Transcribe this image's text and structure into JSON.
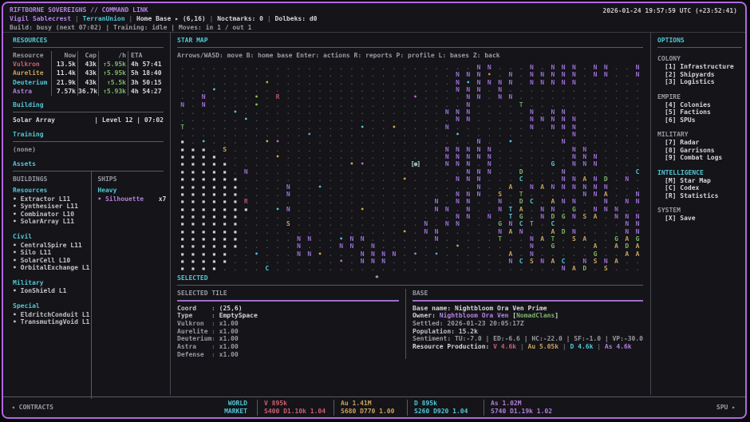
{
  "window": {
    "datetime": "2026-01-24 19:57:59 UTC  (+23:52:41)"
  },
  "header": {
    "title": "RIFTBORNE SOVEREIGNS // COMMAND LINK",
    "player": "Vigil Sablecrest",
    "faction": "TerranUnion",
    "home": "Home Base ▸ (6,16)",
    "noctmarks": "Noctmarks: 0",
    "dolbeks": "Dolbeks: d0",
    "sep": "|",
    "status_line": "Build: busy (next 07:02) | Training: idle | Moves: in 1 / out 1"
  },
  "resources": {
    "title": "RESOURCES",
    "columns": [
      "Resource",
      "Now",
      "Cap",
      "/h",
      "ETA"
    ],
    "rows": [
      {
        "name": "Vulkron",
        "now": "13.5k",
        "cap": "43k",
        "rate": "↑5.95k",
        "eta": "4h 57:41",
        "color": "#c9606e"
      },
      {
        "name": "Aurelite",
        "now": "11.4k",
        "cap": "43k",
        "rate": "↑5.95k",
        "eta": "5h 18:40",
        "color": "#c9a35c"
      },
      {
        "name": "Deuterium",
        "now": "21.9k",
        "cap": "43k",
        "rate": "↑5.5k",
        "eta": "3h 50:15",
        "color": "#52c7d4"
      },
      {
        "name": "Astra",
        "now": "7.57k",
        "cap": "36.7k",
        "rate": "↑5.93k",
        "eta": "4h 54:27",
        "color": "#b37fd9"
      }
    ]
  },
  "building": {
    "title": "Building",
    "name": "Solar Array",
    "detail": "| Level 12 | 07:02"
  },
  "training": {
    "title": "Training",
    "value": "(none)"
  },
  "assets": {
    "title": "Assets",
    "buildings_title": "BUILDINGS",
    "ships_title": "SHIPS",
    "building_groups": [
      {
        "name": "Resources",
        "items": [
          "Extractor L11",
          "Synthesiser L11",
          "Combinator L10",
          "SolarArray L11"
        ]
      },
      {
        "name": "Civil",
        "items": [
          "CentralSpire L11",
          "Silo L11",
          "SolarCell L10",
          "OrbitalExchange L1"
        ]
      },
      {
        "name": "Military",
        "items": [
          "IonShield L1"
        ]
      },
      {
        "name": "Special",
        "items": [
          "EldritchConduit L1",
          "TransmutingVoid L1"
        ]
      }
    ],
    "ship_groups": [
      {
        "name": "Heavy",
        "items": [
          {
            "name": "Silhouette",
            "count": "x7",
            "color": "#b37fd9"
          }
        ]
      }
    ]
  },
  "starmap": {
    "title": "STAR MAP",
    "help": "Arrows/WASD: move  B: home base  Enter: actions  R: reports  P: profile  L: bases  Z: back",
    "legend": {
      ".": {
        "g": ".",
        "c": "#50505a"
      },
      "#": {
        "g": "▪",
        "c": "#d0d0d0"
      },
      "N": {
        "g": "N",
        "c": "#9a6fd0"
      },
      "R": {
        "g": "R",
        "c": "#b05560"
      },
      "T": {
        "g": "T",
        "c": "#6fa35a"
      },
      "t": {
        "g": "T",
        "c": "#52c7d4"
      },
      "S": {
        "g": "S",
        "c": "#c9a35c"
      },
      "C": {
        "g": "C",
        "c": "#52c7d4"
      },
      "G": {
        "g": "G",
        "c": "#7eb46a"
      },
      "g": {
        "g": "G",
        "c": "#52c7d4"
      },
      "A": {
        "g": "A",
        "c": "#c9a35c"
      },
      "D": {
        "g": "D",
        "c": "#7eb46a"
      },
      "1": {
        "g": "•",
        "c": "#4fc3d9"
      },
      "2": {
        "g": "•",
        "c": "#8bc34a"
      },
      "3": {
        "g": "•",
        "c": "#d4a84a"
      },
      "4": {
        "g": "•",
        "c": "#c46ad6"
      },
      "5": {
        "g": "•",
        "c": "#5b9bd5"
      },
      "6": {
        "g": "•",
        "c": "#d4883a"
      }
    },
    "rows": [
      "............................NN...N.NNN.NN..N",
      "..........................NNN6.N.NNNNN.NN..N",
      "........2.................N1NNNN.NNNNN......",
      "...1......................NNN.N.............",
      "..N....2.R............4....NN.NN............",
      "N.N....2...................N....T...........",
      ".....1...................NNN.....N.NN.......",
      "......1...................NN.....NNNNN......",
      "T................1..3....N.......N.NNN......",
      "............5.............1..........N......",
      "#.1.....34..................N..1....N.......",
      "###.S....................NNNNN.......NN.....",
      "####.....3...............NNNNN.......NNN....",
      "#####...........34....@..NNN.N.....g.NNN....",
      "#####.N....................NNN..D...N......C",
      "######...............3....NNN...C...NNAND.N.",
      "######....N..1..............N..A.NANNNNNN...",
      "######....N...............NNN.S.T.....NNA..N",
      "######R.................N.NN..N.DC.ANN..N.NN",
      "#######..1N......3......NN.N..NtA.NN.G.NNN..",
      "######....................NN.N.tG.NDGNSA.NNN",
      "######....S............N.NN...GNCT.C......NN",
      "######...............3.NN.....NAN..ADN....NN",
      "######.....NN..1NN......N.....T..NAT.SA..GAG",
      "######.....N...NN.N.......2......N.G...A.ADA",
      "#####..1...NN3...NNNN.4.5......A.N.....G..AA",
      "#####..........4.NNN...........NCSNAC.NSNA..",
      "####....C...........................NAD.S..."
    ]
  },
  "selected": {
    "title": "SELECTED",
    "marker": "*",
    "tile": {
      "title": "SELECTED TILE",
      "fields": [
        {
          "label": "Coord",
          "value": "(25,6)"
        },
        {
          "label": "Type",
          "value": "EmptySpace"
        },
        {
          "label": "Vulkron",
          "value": "x1.00"
        },
        {
          "label": "Aurelite",
          "value": "x1.00"
        },
        {
          "label": "Deuterium",
          "value": "x1.00"
        },
        {
          "label": "Astra",
          "value": "x1.00"
        },
        {
          "label": "Defense",
          "value": "x1.00"
        }
      ]
    },
    "base": {
      "title": "BASE",
      "name_label": "Base name:",
      "name": "Nightbloom Ora Ven Prime",
      "owner_label": "Owner:",
      "owner": "Nightbloom Ora Ven",
      "clan": "NomadClans",
      "settled": "Settled: 2026-01-23 20:05:17Z",
      "population": "Population: 15.2k",
      "sentiment": "Sentiment: TU:-7.0 | ED:-6.6 | HC:-22.0 | SF:-1.0 | VP:-30.0",
      "production_label": "Resource Production:",
      "production": [
        {
          "text": "V 4.6k",
          "color": "#c9606e"
        },
        {
          "text": "Au 5.05k",
          "color": "#c9a35c"
        },
        {
          "text": "D 4.6k",
          "color": "#52c7d4"
        },
        {
          "text": "As 4.6k",
          "color": "#b37fd9"
        }
      ]
    }
  },
  "options": {
    "title": "OPTIONS",
    "sections": [
      {
        "name": "COLONY",
        "accent": false,
        "items": [
          "[1] Infrastructure",
          "[2] Shipyards",
          "[3] Logistics"
        ]
      },
      {
        "name": "EMPIRE",
        "accent": false,
        "items": [
          "[4] Colonies",
          "[5] Factions",
          "[6] SPUs"
        ]
      },
      {
        "name": "MILITARY",
        "accent": false,
        "items": [
          "[7] Radar",
          "[8] Garrisons",
          "[9] Combat Logs"
        ]
      },
      {
        "name": "INTELLIGENCE",
        "accent": true,
        "items": [
          "[M] Star Map",
          "[C] Codex",
          "[R] Statistics"
        ]
      },
      {
        "name": "SYSTEM",
        "accent": false,
        "items": [
          "[X] Save"
        ]
      }
    ]
  },
  "footer": {
    "contracts": "◂ CONTRACTS",
    "world_market": [
      "WORLD",
      "MARKET"
    ],
    "entries": [
      {
        "line1": "V 895k",
        "line2": "S400 D1.10k 1.04",
        "color": "#c9606e"
      },
      {
        "line1": "Au 1.41M",
        "line2": "S680 D770 1.00",
        "color": "#c9a35c"
      },
      {
        "line1": "D 895k",
        "line2": "S260 D920 1.04",
        "color": "#52c7d4"
      },
      {
        "line1": "As 1.02M",
        "line2": "S740 D1.19k 1.02",
        "color": "#b37fd9"
      }
    ],
    "spu": "SPU ▸"
  }
}
